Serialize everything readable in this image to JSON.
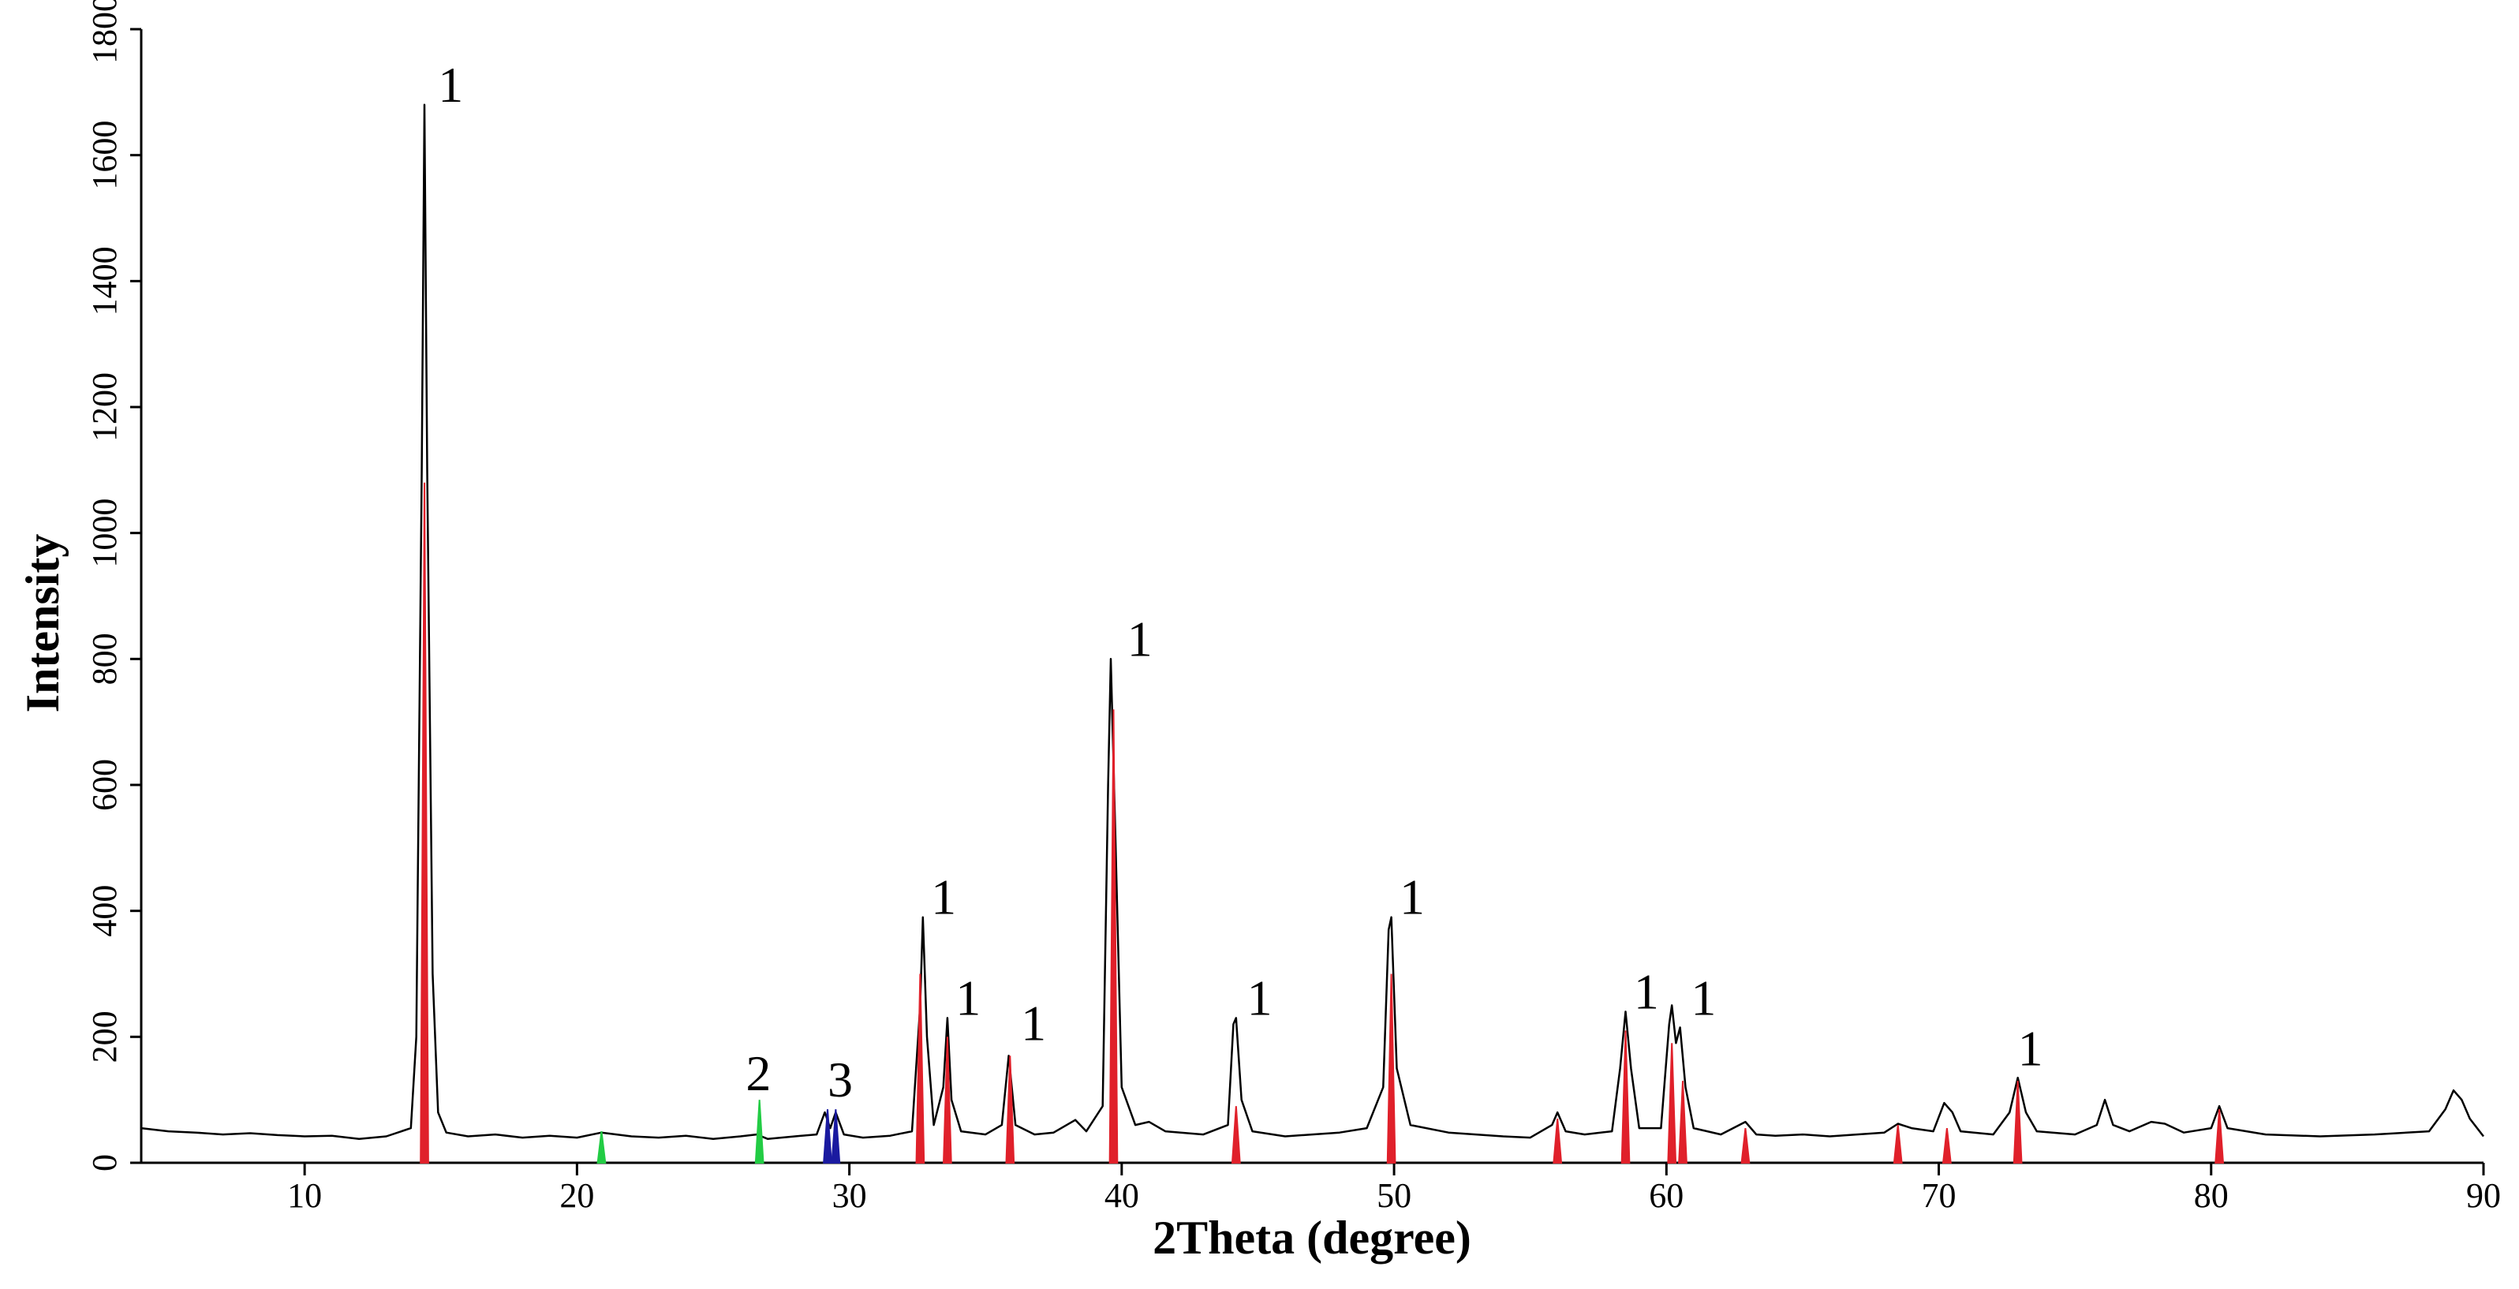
{
  "chart_data": {
    "type": "line",
    "x_label": "2Theta (degree)",
    "y_label": "Intensity",
    "xlim": [
      4,
      90
    ],
    "ylim": [
      0,
      1800
    ],
    "xticks": [
      10,
      20,
      30,
      40,
      50,
      60,
      70,
      80,
      90
    ],
    "yticks": [
      0,
      200,
      400,
      600,
      800,
      1000,
      1200,
      1400,
      1600,
      1800
    ],
    "grid": false,
    "series": [
      {
        "mark": "line",
        "color": "#000000",
        "x": [
          4,
          5,
          6,
          7,
          8,
          9,
          10,
          11,
          12,
          13,
          13.9,
          14.1,
          14.3,
          14.4,
          14.5,
          14.7,
          14.9,
          15.2,
          16,
          17,
          18,
          19,
          20,
          20.9,
          22,
          23,
          24,
          25,
          26,
          26.6,
          27,
          28,
          28.8,
          29.1,
          29.3,
          29.5,
          29.8,
          30.5,
          31.5,
          32.3,
          32.6,
          32.7,
          32.85,
          33.1,
          33.45,
          33.6,
          33.75,
          34.1,
          35,
          35.6,
          35.85,
          36.1,
          36.8,
          37.5,
          38.3,
          38.7,
          39.3,
          39.5,
          39.6,
          39.75,
          40,
          40.5,
          41,
          41.6,
          43,
          43.9,
          44.1,
          44.2,
          44.4,
          44.8,
          46,
          47,
          48,
          49,
          49.6,
          49.8,
          49.9,
          50.1,
          50.6,
          52,
          53,
          54,
          55,
          55.8,
          56,
          56.3,
          57,
          58,
          58.3,
          58.5,
          58.7,
          59,
          59.8,
          60.1,
          60.2,
          60.35,
          60.5,
          60.7,
          61,
          62,
          62.9,
          63.3,
          64,
          65,
          66,
          67,
          68,
          68.5,
          69,
          69.8,
          70.2,
          70.5,
          70.8,
          72,
          72.6,
          72.9,
          73.2,
          73.6,
          75,
          75.8,
          76.1,
          76.4,
          77,
          77.8,
          78.3,
          79,
          80,
          80.3,
          80.6,
          82,
          84,
          86,
          88,
          88.6,
          88.9,
          89.2,
          89.5,
          90
        ],
        "values": [
          55,
          50,
          48,
          45,
          47,
          44,
          42,
          43,
          38,
          42,
          55,
          200,
          1100,
          1680,
          1100,
          300,
          80,
          48,
          42,
          45,
          40,
          43,
          40,
          48,
          42,
          40,
          43,
          38,
          42,
          45,
          38,
          42,
          45,
          80,
          55,
          80,
          45,
          40,
          43,
          50,
          250,
          390,
          200,
          60,
          120,
          230,
          100,
          50,
          45,
          60,
          170,
          60,
          45,
          48,
          68,
          50,
          90,
          600,
          800,
          550,
          120,
          60,
          65,
          50,
          45,
          60,
          220,
          230,
          100,
          50,
          42,
          45,
          48,
          55,
          120,
          370,
          390,
          150,
          60,
          48,
          45,
          42,
          40,
          60,
          80,
          50,
          45,
          50,
          150,
          240,
          150,
          55,
          55,
          220,
          250,
          190,
          215,
          120,
          55,
          45,
          65,
          45,
          43,
          45,
          42,
          45,
          48,
          62,
          55,
          50,
          95,
          80,
          50,
          45,
          80,
          135,
          80,
          50,
          45,
          60,
          100,
          60,
          50,
          65,
          62,
          48,
          55,
          90,
          55,
          45,
          42,
          45,
          50,
          85,
          115,
          100,
          70,
          42
        ]
      },
      {
        "mark": "stick",
        "color": "#e0202a",
        "x": [
          14.4,
          32.6,
          33.6,
          35.9,
          39.7,
          44.2,
          49.9,
          56.0,
          58.5,
          60.2,
          60.6,
          62.9,
          68.5,
          70.3,
          72.9,
          80.3
        ],
        "values": [
          1080,
          300,
          200,
          170,
          720,
          90,
          300,
          70,
          210,
          190,
          130,
          55,
          60,
          55,
          130,
          85
        ]
      },
      {
        "mark": "stick",
        "color": "#22cc44",
        "x": [
          20.9,
          26.7
        ],
        "values": [
          50,
          100
        ]
      },
      {
        "mark": "stick",
        "color": "#1a1aa0",
        "x": [
          29.2,
          29.5
        ],
        "values": [
          85,
          85
        ]
      }
    ],
    "annotations": [
      {
        "text": "1",
        "x": 14.9,
        "y": 1680
      },
      {
        "text": "2",
        "x": 26.2,
        "y": 110
      },
      {
        "text": "3",
        "x": 29.2,
        "y": 100
      },
      {
        "text": "1",
        "x": 33.0,
        "y": 390
      },
      {
        "text": "1",
        "x": 33.9,
        "y": 230
      },
      {
        "text": "1",
        "x": 36.3,
        "y": 190
      },
      {
        "text": "1",
        "x": 40.2,
        "y": 800
      },
      {
        "text": "1",
        "x": 44.6,
        "y": 230
      },
      {
        "text": "1",
        "x": 50.2,
        "y": 390
      },
      {
        "text": "1",
        "x": 58.8,
        "y": 240
      },
      {
        "text": "1",
        "x": 60.9,
        "y": 230
      },
      {
        "text": "1",
        "x": 72.9,
        "y": 150
      }
    ]
  }
}
